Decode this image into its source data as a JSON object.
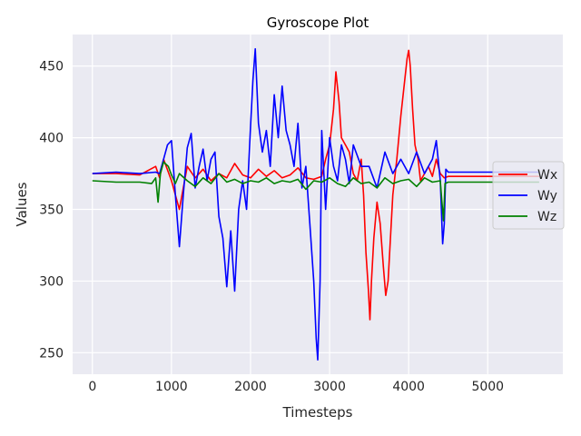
{
  "chart_data": {
    "type": "line",
    "title": "Gyroscope Plot",
    "xlabel": "Timesteps",
    "ylabel": "Values",
    "xlim": [
      -250,
      5950
    ],
    "ylim": [
      235,
      472
    ],
    "xticks": [
      0,
      1000,
      2000,
      3000,
      4000,
      5000
    ],
    "yticks": [
      250,
      300,
      350,
      400,
      450
    ],
    "grid": true,
    "legend_position": "center-right",
    "colors": {
      "background": "#eaeaf2",
      "grid": "#ffffff"
    },
    "series": [
      {
        "name": "Wx",
        "color": "#ff0000",
        "x": [
          0,
          300,
          600,
          800,
          850,
          900,
          960,
          1000,
          1050,
          1100,
          1150,
          1200,
          1300,
          1400,
          1500,
          1600,
          1700,
          1800,
          1900,
          2000,
          2100,
          2200,
          2300,
          2400,
          2500,
          2600,
          2700,
          2800,
          2900,
          2950,
          3000,
          3050,
          3080,
          3120,
          3150,
          3200,
          3250,
          3300,
          3350,
          3400,
          3430,
          3460,
          3490,
          3510,
          3530,
          3560,
          3600,
          3640,
          3680,
          3710,
          3740,
          3770,
          3800,
          3850,
          3900,
          3950,
          3980,
          4000,
          4020,
          4050,
          4080,
          4120,
          4150,
          4200,
          4250,
          4300,
          4350,
          4400,
          4450,
          4500,
          5000,
          5650
        ],
        "y": [
          375,
          375,
          374,
          380,
          372,
          385,
          376,
          370,
          360,
          350,
          365,
          380,
          372,
          378,
          370,
          375,
          372,
          382,
          374,
          372,
          378,
          373,
          377,
          372,
          374,
          379,
          372,
          371,
          373,
          385,
          395,
          420,
          446,
          425,
          400,
          395,
          390,
          375,
          370,
          385,
          360,
          320,
          295,
          273,
          300,
          330,
          355,
          340,
          310,
          290,
          300,
          330,
          360,
          385,
          415,
          440,
          455,
          461,
          450,
          420,
          395,
          385,
          370,
          375,
          380,
          373,
          385,
          375,
          372,
          373,
          373,
          373
        ]
      },
      {
        "name": "Wy",
        "color": "#0000ff",
        "x": [
          0,
          300,
          600,
          800,
          850,
          900,
          950,
          1000,
          1050,
          1100,
          1150,
          1200,
          1250,
          1300,
          1350,
          1400,
          1450,
          1500,
          1550,
          1600,
          1650,
          1700,
          1750,
          1800,
          1850,
          1900,
          1950,
          2000,
          2030,
          2060,
          2100,
          2150,
          2200,
          2250,
          2300,
          2350,
          2400,
          2450,
          2500,
          2550,
          2600,
          2650,
          2700,
          2750,
          2800,
          2830,
          2850,
          2880,
          2900,
          2950,
          3000,
          3050,
          3100,
          3150,
          3200,
          3250,
          3300,
          3400,
          3500,
          3600,
          3700,
          3800,
          3900,
          4000,
          4100,
          4200,
          4300,
          4350,
          4400,
          4430,
          4450,
          4470,
          4500,
          5000,
          5650
        ],
        "y": [
          375,
          376,
          375,
          376,
          375,
          385,
          395,
          398,
          360,
          324,
          360,
          393,
          403,
          365,
          380,
          392,
          370,
          385,
          390,
          345,
          330,
          296,
          335,
          293,
          350,
          370,
          350,
          408,
          440,
          462,
          410,
          390,
          405,
          380,
          430,
          400,
          436,
          405,
          395,
          380,
          410,
          365,
          380,
          340,
          300,
          260,
          245,
          300,
          405,
          350,
          400,
          380,
          370,
          395,
          385,
          368,
          395,
          380,
          380,
          365,
          390,
          375,
          385,
          375,
          390,
          375,
          385,
          398,
          370,
          326,
          340,
          378,
          376,
          376,
          376
        ]
      },
      {
        "name": "Wz",
        "color": "#008000",
        "x": [
          0,
          300,
          600,
          750,
          800,
          830,
          860,
          900,
          960,
          1000,
          1050,
          1100,
          1200,
          1300,
          1400,
          1500,
          1600,
          1700,
          1800,
          1900,
          2000,
          2100,
          2200,
          2300,
          2400,
          2500,
          2600,
          2700,
          2800,
          2900,
          3000,
          3100,
          3200,
          3300,
          3400,
          3500,
          3600,
          3700,
          3800,
          3900,
          4000,
          4100,
          4200,
          4300,
          4400,
          4420,
          4440,
          4460,
          4500,
          5000,
          5650
        ],
        "y": [
          370,
          369,
          369,
          368,
          372,
          355,
          375,
          383,
          380,
          374,
          368,
          375,
          370,
          366,
          372,
          368,
          375,
          369,
          371,
          368,
          370,
          369,
          372,
          368,
          370,
          369,
          371,
          364,
          370,
          369,
          372,
          368,
          366,
          372,
          368,
          369,
          365,
          372,
          368,
          370,
          371,
          366,
          372,
          369,
          370,
          356,
          342,
          368,
          369,
          369,
          369
        ]
      }
    ]
  }
}
